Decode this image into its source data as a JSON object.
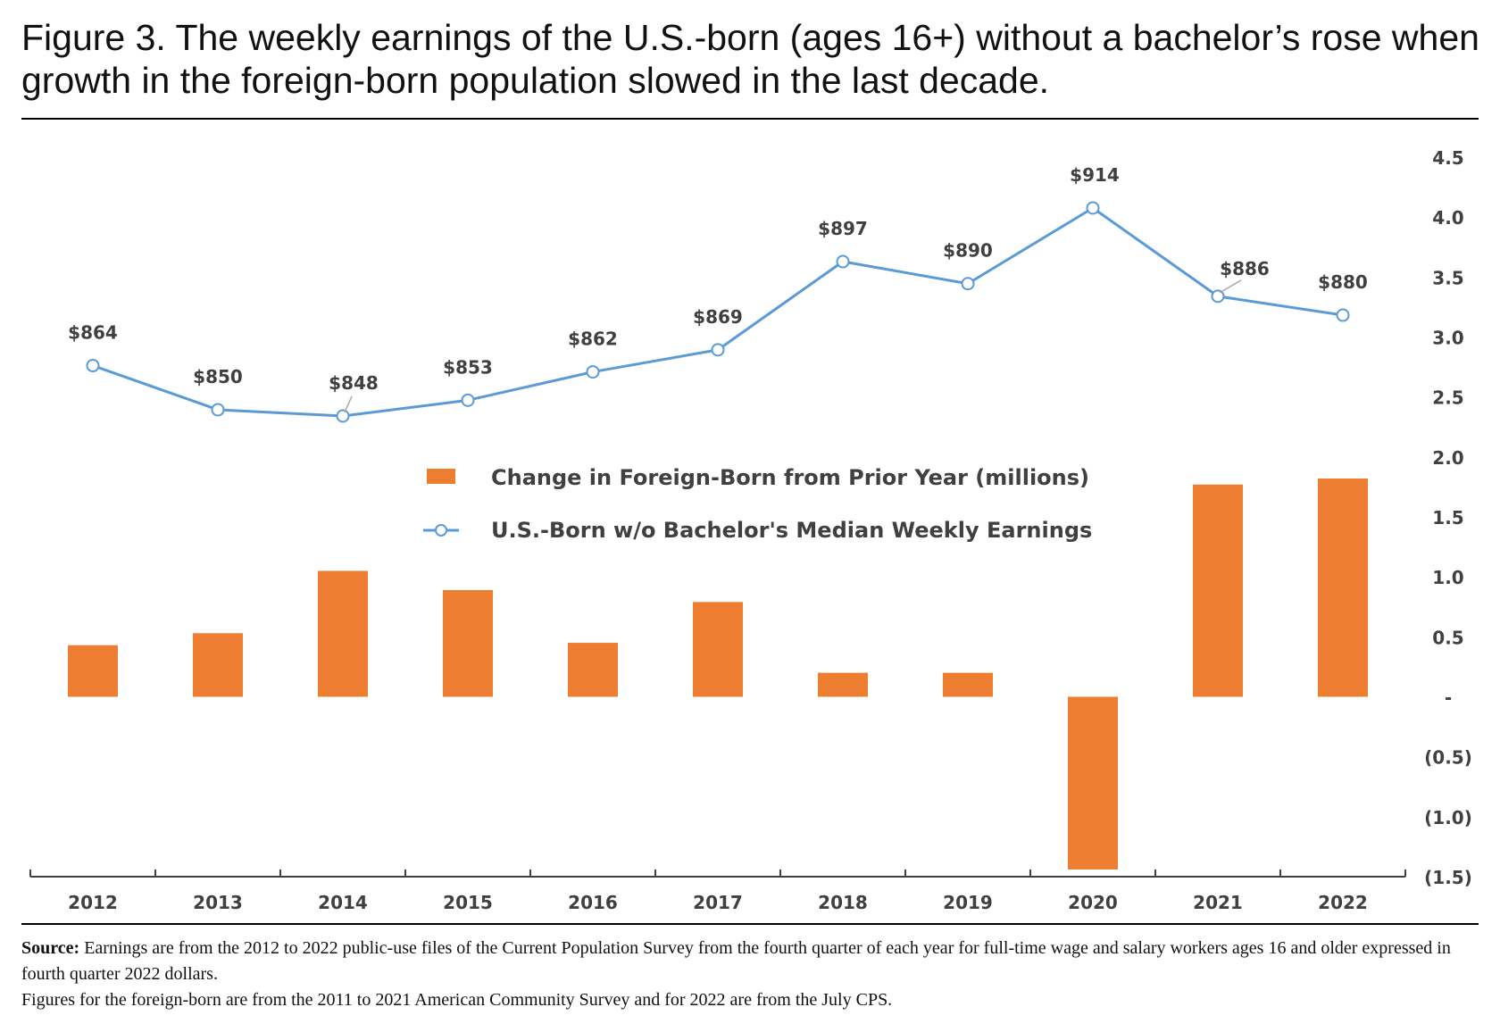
{
  "figure": {
    "title": "Figure 3. The weekly earnings of the U.S.-born (ages 16+) without a bachelor’s rose when growth in the foreign-born population slowed in the last decade.",
    "source_label": "Source:",
    "source_text": "Earnings are from the 2012 to 2022 public-use files of the Current Population Survey from the fourth quarter of each year for full-time wage and salary workers ages 16 and older expressed in fourth quarter 2022 dollars.",
    "source_note": "Figures for the foreign-born are from the 2011 to 2021 American Community Survey and for 2022 are from the July CPS."
  },
  "chart_data": {
    "type": "bar+line",
    "title": "Figure 3. The weekly earnings of the U.S.-born (ages 16+) without a bachelor’s rose when growth in the foreign-born population slowed in the last decade.",
    "categories": [
      "2012",
      "2013",
      "2014",
      "2015",
      "2016",
      "2017",
      "2018",
      "2019",
      "2020",
      "2021",
      "2022"
    ],
    "right_axis": {
      "ylim": [
        -1.5,
        4.5
      ],
      "ticks": [
        4.5,
        4.0,
        3.5,
        3.0,
        2.5,
        2.0,
        1.5,
        1.0,
        0.5,
        0,
        -0.5,
        -1.0,
        -1.5
      ],
      "tick_labels": [
        "4.5",
        "4.0",
        "3.5",
        "3.0",
        "2.5",
        "2.0",
        "1.5",
        "1.0",
        "0.5",
        "-",
        "(0.5)",
        "(1.0)",
        "(1.5)"
      ]
    },
    "series": [
      {
        "name": "Change in Foreign-Born from Prior Year (millions)",
        "kind": "bar",
        "color": "#ED7D31",
        "values": [
          0.43,
          0.53,
          1.05,
          0.89,
          0.45,
          0.79,
          0.2,
          0.2,
          -1.44,
          1.77,
          1.82
        ]
      },
      {
        "name": "U.S.-Born w/o Bachelor's Median Weekly Earnings",
        "kind": "line",
        "color": "#5B9BD5",
        "values": [
          864,
          850,
          848,
          853,
          862,
          869,
          897,
          890,
          914,
          886,
          880
        ],
        "labels": [
          "$864",
          "$850",
          "$848",
          "$853",
          "$862",
          "$869",
          "$897",
          "$890",
          "$914",
          "$886",
          "$880"
        ]
      }
    ],
    "legend": [
      "Change in Foreign-Born from Prior Year (millions)",
      "U.S.-Born w/o Bachelor's Median Weekly Earnings"
    ],
    "legend_position": "center"
  }
}
